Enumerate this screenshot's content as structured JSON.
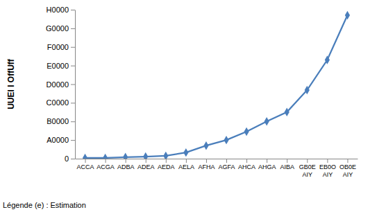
{
  "chart_data": {
    "type": "line",
    "y_label": "UUEI l OffUff",
    "annotation": "Légende (e) :  Estimation",
    "categories": [
      "ACCA",
      "ACGA",
      "ADBA",
      "ADEA",
      "AEDA",
      "AELA",
      "AFHA",
      "AGFA",
      "AHCA",
      "AHGA",
      "AIBA",
      "GB0E AIY",
      "EB0O AIY",
      "OB0E AIY"
    ],
    "values": [
      400,
      400,
      800,
      1100,
      1500,
      3300,
      7000,
      10000,
      14500,
      20000,
      25000,
      36800,
      53000,
      77000
    ],
    "color": "#4a7ebb",
    "marker": "diamond",
    "ylim": [
      0,
      80000
    ],
    "yticks": [
      {
        "value": 0,
        "label": "0"
      },
      {
        "value": 10000,
        "label": "A0000"
      },
      {
        "value": 20000,
        "label": "B0000"
      },
      {
        "value": 30000,
        "label": "C0000"
      },
      {
        "value": 40000,
        "label": "D0000"
      },
      {
        "value": 50000,
        "label": "E0000"
      },
      {
        "value": 60000,
        "label": "F0000"
      },
      {
        "value": 70000,
        "label": "G0000"
      },
      {
        "value": 80000,
        "label": "H0000"
      }
    ],
    "grid": false
  }
}
